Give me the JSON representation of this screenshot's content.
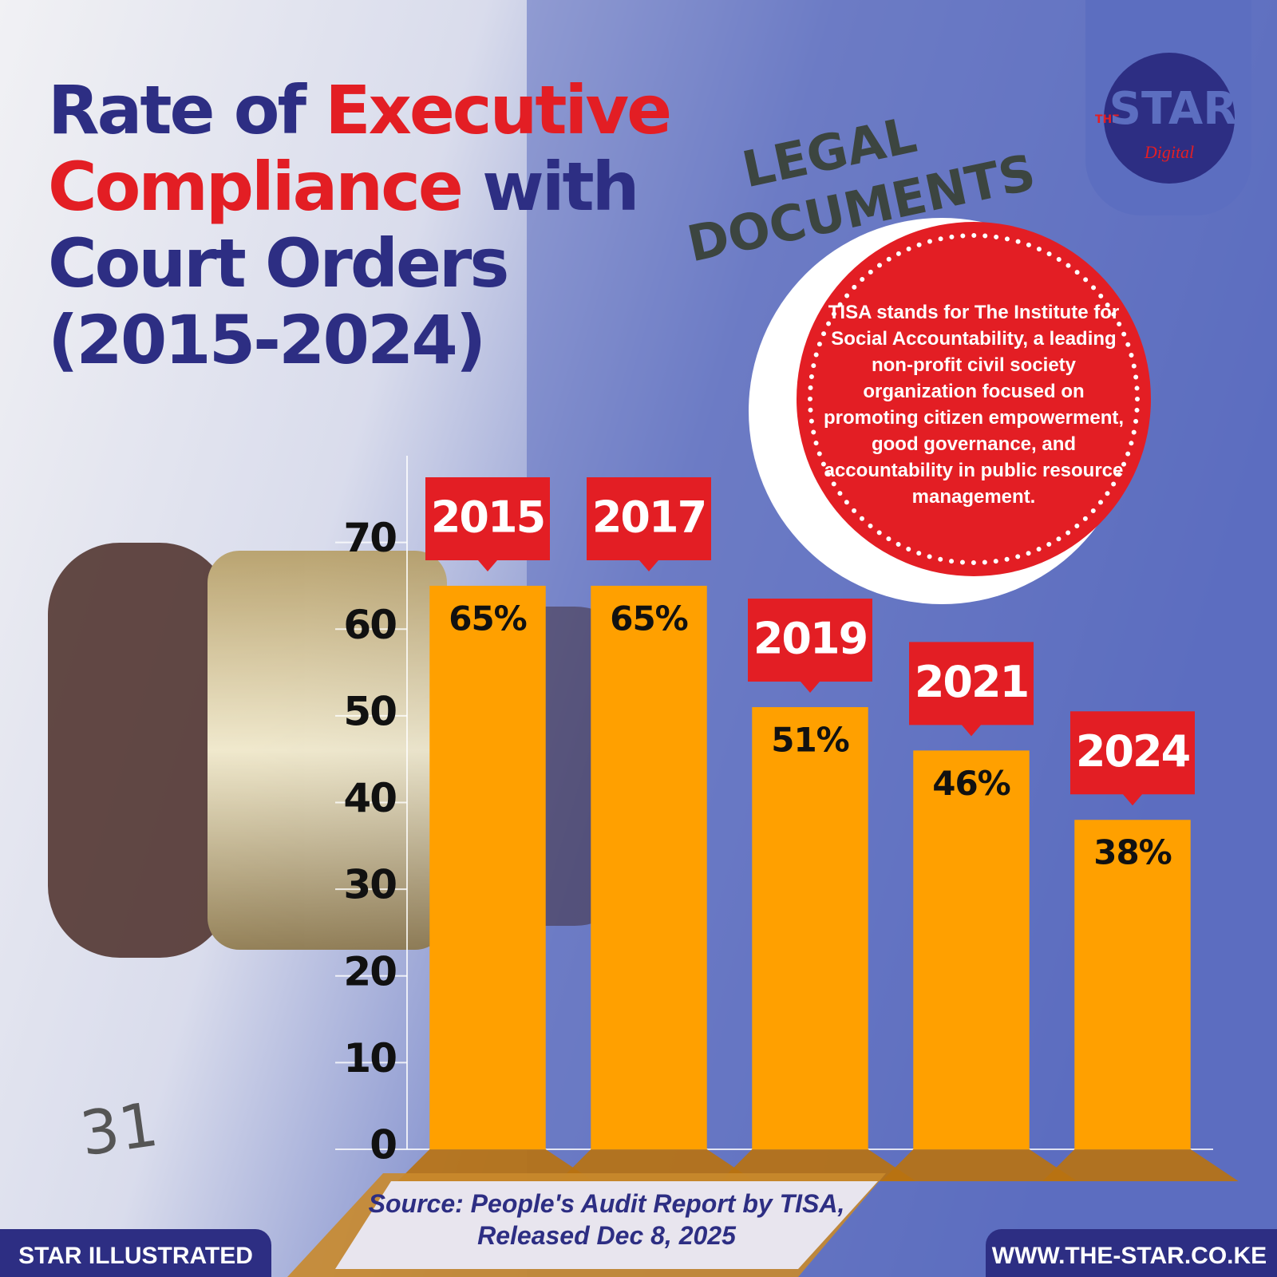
{
  "chart_data": {
    "type": "bar",
    "title": [
      "Rate of",
      "Executive Compliance",
      "with Court Orders (2015-2024)"
    ],
    "categories": [
      "2015",
      "2017",
      "2019",
      "2021",
      "2024"
    ],
    "values": [
      65,
      65,
      51,
      46,
      38
    ],
    "value_labels": [
      "65%",
      "65%",
      "51%",
      "46%",
      "38%"
    ],
    "color": "#ffa000",
    "label_color": "#e31e24",
    "ylim": [
      0,
      80
    ],
    "yticks": [
      0,
      10,
      20,
      30,
      40,
      50,
      60,
      70
    ]
  },
  "note": "TISA stands for The Institute for Social Accountability, a leading non-profit civil society organization focused on promoting citizen empowerment, good governance, and accountability in public resource management.",
  "source": "Source: People's Audit Report by TISA, Released Dec 8, 2025",
  "footer": [
    "STAR ILLUSTRATED",
    "WWW.THE-STAR.CO.KE"
  ],
  "logo": [
    "THE",
    "STAR",
    "Digital"
  ],
  "background_text": [
    "LEGAL",
    "DOCUMENTS",
    "31"
  ]
}
